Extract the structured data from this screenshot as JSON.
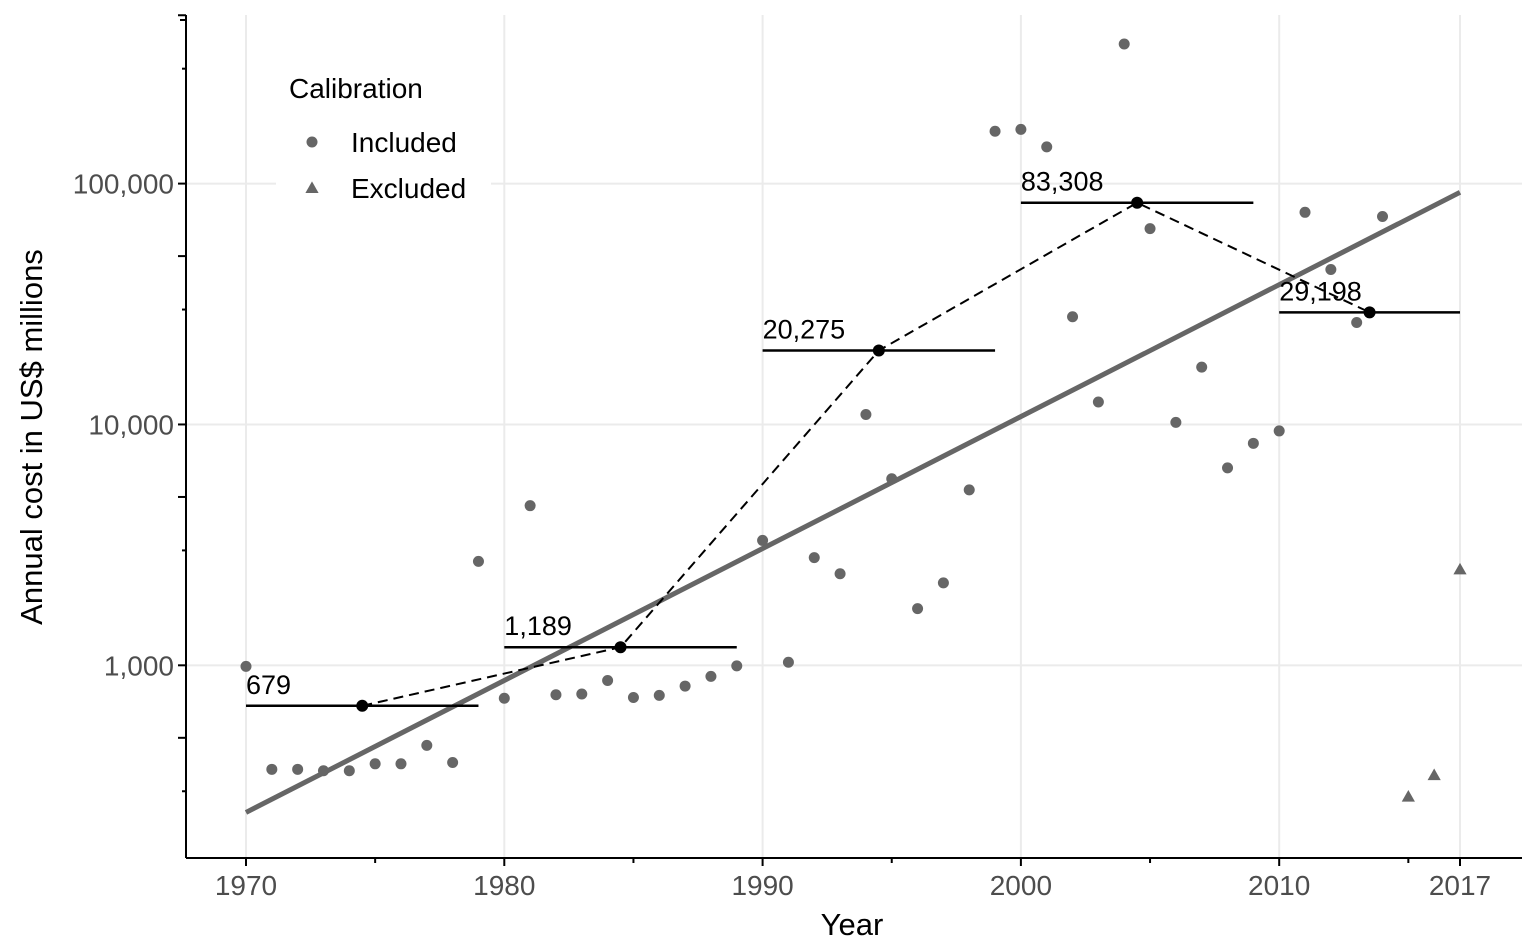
{
  "chart_data": {
    "type": "scatter",
    "xlabel": "Year",
    "ylabel": "Annual cost in US$ millions",
    "xlim": [
      1970,
      2017
    ],
    "ylim_log10": [
      2.2,
      5.7
    ],
    "y_scale": "log10",
    "x_ticks": [
      1970,
      1980,
      1990,
      2000,
      2010,
      2017
    ],
    "y_ticks": [
      {
        "value": 1000,
        "label": "1,000"
      },
      {
        "value": 10000,
        "label": "10,000"
      },
      {
        "value": 100000,
        "label": "100,000"
      }
    ],
    "grid": true,
    "legend": {
      "title": "Calibration",
      "position": "top-left",
      "items": [
        {
          "label": "Included",
          "shape": "circle"
        },
        {
          "label": "Excluded",
          "shape": "triangle"
        }
      ]
    },
    "series": [
      {
        "name": "Included",
        "shape": "circle",
        "color": "#666666",
        "points": [
          [
            1970,
            990
          ],
          [
            1971,
            370
          ],
          [
            1972,
            370
          ],
          [
            1973,
            365
          ],
          [
            1974,
            365
          ],
          [
            1975,
            390
          ],
          [
            1976,
            390
          ],
          [
            1977,
            465
          ],
          [
            1978,
            395
          ],
          [
            1979,
            2700
          ],
          [
            1980,
            730
          ],
          [
            1981,
            4600
          ],
          [
            1982,
            755
          ],
          [
            1983,
            760
          ],
          [
            1984,
            865
          ],
          [
            1985,
            735
          ],
          [
            1986,
            750
          ],
          [
            1987,
            820
          ],
          [
            1988,
            900
          ],
          [
            1989,
            995
          ],
          [
            1990,
            3300
          ],
          [
            1991,
            1030
          ],
          [
            1992,
            2800
          ],
          [
            1993,
            2400
          ],
          [
            1994,
            11000
          ],
          [
            1995,
            5950
          ],
          [
            1996,
            1720
          ],
          [
            1997,
            2200
          ],
          [
            1998,
            5350
          ],
          [
            1999,
            165000
          ],
          [
            2000,
            168000
          ],
          [
            2001,
            142000
          ],
          [
            2002,
            28000
          ],
          [
            2003,
            12400
          ],
          [
            2004,
            380000
          ],
          [
            2005,
            65000
          ],
          [
            2006,
            10200
          ],
          [
            2007,
            17300
          ],
          [
            2008,
            6600
          ],
          [
            2009,
            8350
          ],
          [
            2010,
            9400
          ],
          [
            2011,
            76000
          ],
          [
            2012,
            44000
          ],
          [
            2013,
            26500
          ],
          [
            2014,
            73000
          ]
        ]
      },
      {
        "name": "Excluded",
        "shape": "triangle",
        "color": "#666666",
        "points": [
          [
            2015,
            285
          ],
          [
            2016,
            350
          ],
          [
            2017,
            2500
          ]
        ]
      }
    ],
    "trend_line": {
      "color": "#666666",
      "points": [
        [
          1970,
          245
        ],
        [
          2017,
          92000
        ]
      ]
    },
    "decade_means": {
      "color": "#000000",
      "items": [
        {
          "label": "679",
          "value": 679,
          "x_start": 1970,
          "x_end": 1979,
          "x_mid": 1974.5
        },
        {
          "label": "1,189",
          "value": 1189,
          "x_start": 1980,
          "x_end": 1989,
          "x_mid": 1984.5
        },
        {
          "label": "20,275",
          "value": 20275,
          "x_start": 1990,
          "x_end": 1999,
          "x_mid": 1994.5
        },
        {
          "label": "83,308",
          "value": 83308,
          "x_start": 2000,
          "x_end": 2009,
          "x_mid": 2004.5
        },
        {
          "label": "29,198",
          "value": 29198,
          "x_start": 2010,
          "x_end": 2017,
          "x_mid": 2013.5
        }
      ]
    }
  }
}
